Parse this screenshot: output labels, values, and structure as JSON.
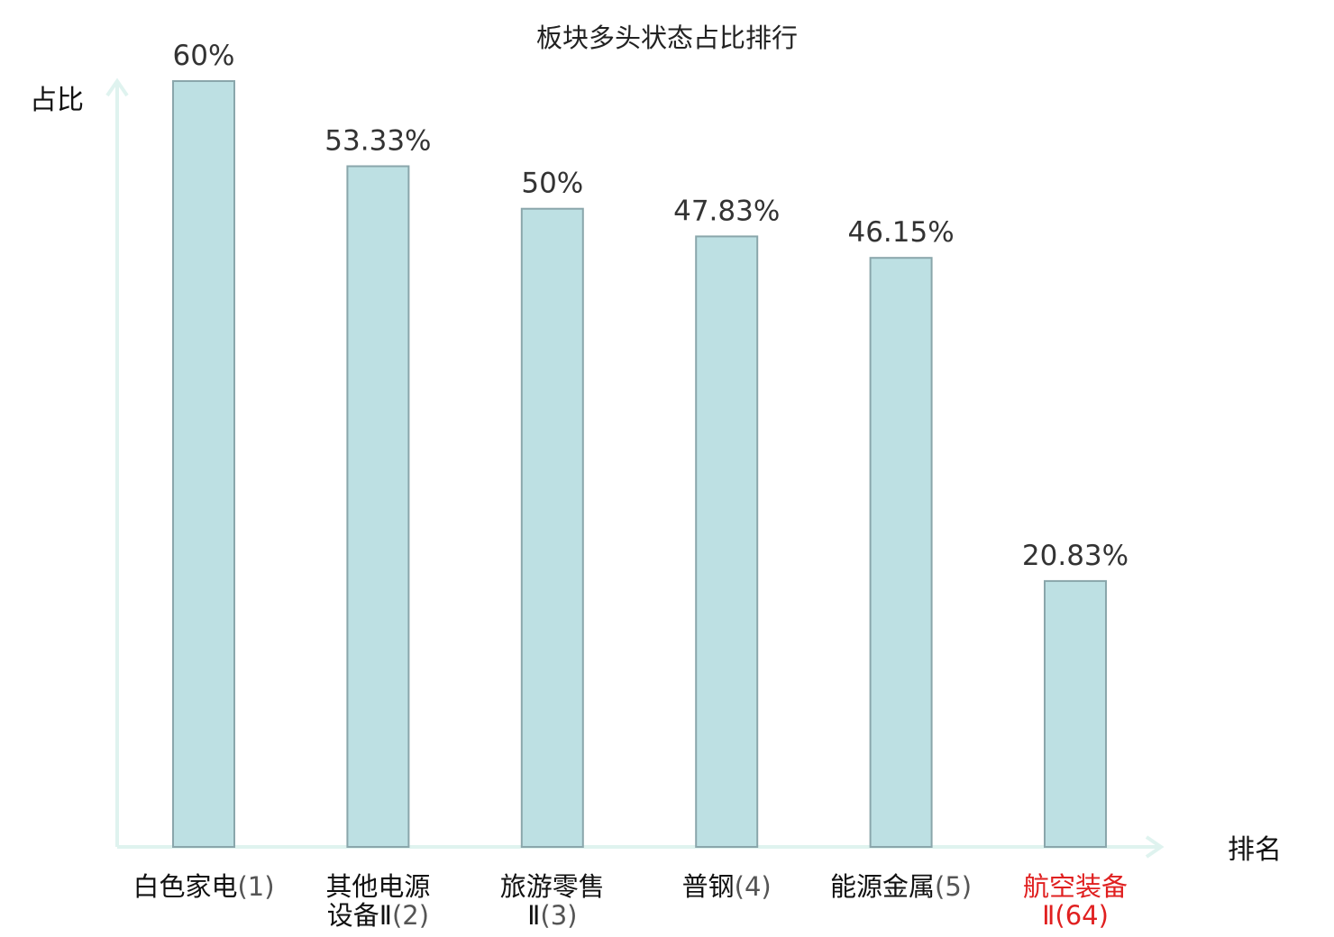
{
  "chart_data": {
    "type": "bar",
    "title": "板块多头状态占比排行",
    "ylabel": "占比",
    "xlabel": "排名",
    "ylim": [
      0,
      0.6
    ],
    "grid": false,
    "legend": "none",
    "categories": [
      {
        "name": "白色家电",
        "rank": "(1)",
        "highlight": false
      },
      {
        "name": "其他电源设备Ⅱ",
        "rank": "(2)",
        "highlight": false
      },
      {
        "name": "旅游零售Ⅱ",
        "rank": "(3)",
        "highlight": false
      },
      {
        "name": "普钢",
        "rank": "(4)",
        "highlight": false
      },
      {
        "name": "能源金属",
        "rank": "(5)",
        "highlight": false
      },
      {
        "name": "航空装备Ⅱ",
        "rank": "(64)",
        "highlight": true
      }
    ],
    "values": [
      0.6,
      0.5333,
      0.5,
      0.4783,
      0.4615,
      0.2083
    ],
    "value_labels": [
      "60%",
      "53.33%",
      "50%",
      "47.83%",
      "46.15%",
      "20.83%"
    ],
    "category_label_lines": [
      [
        "白色家电(1)"
      ],
      [
        "其他电源",
        "设备Ⅱ(2)"
      ],
      [
        "旅游零售",
        "Ⅱ(3)"
      ],
      [
        "普钢(4)"
      ],
      [
        "能源金属(5)"
      ],
      [
        "航空装备",
        "Ⅱ(64)"
      ]
    ],
    "colors": {
      "bar_fill": "#bde0e3",
      "bar_stroke": "#8aa6ab",
      "axis": "#dff3ef",
      "highlight_text": "#e02020"
    }
  }
}
